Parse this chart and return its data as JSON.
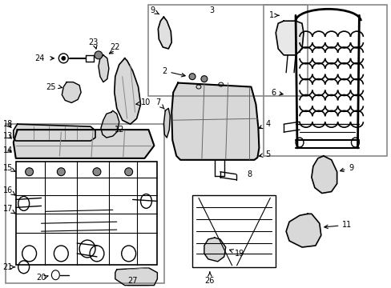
{
  "bg_color": "#ffffff",
  "line_color": "#000000",
  "fig_width": 4.89,
  "fig_height": 3.6,
  "dpi": 100,
  "gray_fill": "#e8e8e8",
  "dark_gray": "#c0c0c0",
  "box_color": "#888888"
}
